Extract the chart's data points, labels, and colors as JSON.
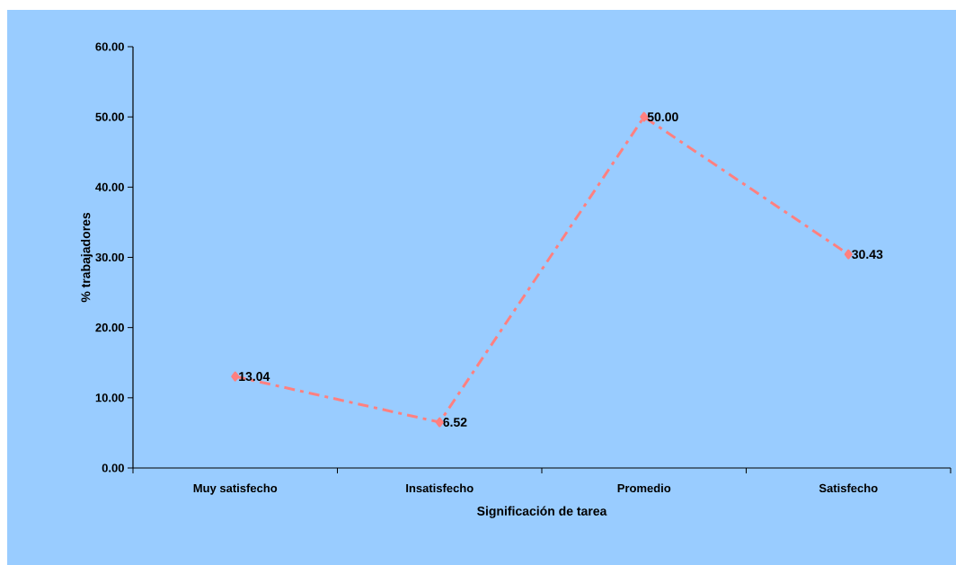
{
  "chart_data": {
    "type": "line",
    "xlabel": "Significación de tarea",
    "ylabel": "% trabajadores",
    "categories": [
      "Muy satisfecho",
      "Insatisfecho",
      "Promedio",
      "Satisfecho"
    ],
    "values": [
      13.04,
      6.52,
      50.0,
      30.43
    ],
    "value_labels": [
      "13.04",
      "6.52",
      "50.00",
      "30.43"
    ],
    "color": "#ff8080",
    "marker": "diamond",
    "line_style": "dashed",
    "ylim": [
      0,
      60
    ],
    "yticks": [
      {
        "value": 0,
        "label": "0.00"
      },
      {
        "value": 10,
        "label": "10.00"
      },
      {
        "value": 20,
        "label": "20.00"
      },
      {
        "value": 30,
        "label": "30.00"
      },
      {
        "value": 40,
        "label": "40.00"
      },
      {
        "value": 50,
        "label": "50.00"
      },
      {
        "value": 60,
        "label": "60.00"
      }
    ]
  }
}
